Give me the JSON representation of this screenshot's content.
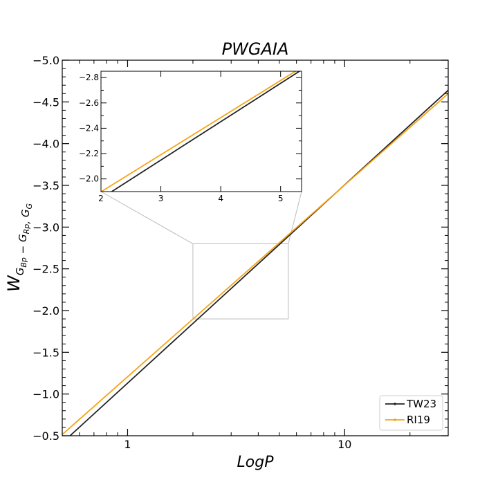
{
  "chart_data": {
    "type": "line",
    "title": "PWGAIA",
    "xlabel": "LogP",
    "ylabel": {
      "base": "W",
      "sub_parts": [
        {
          "text": "G",
          "sub": "Bp"
        },
        {
          "text": " − G",
          "sub": "Rp"
        },
        {
          "text": ", G",
          "sub": "G"
        }
      ]
    },
    "x_scale": "log",
    "xlim": [
      0.5,
      30
    ],
    "ylim": [
      -0.5,
      -5.0
    ],
    "y_inverted": true,
    "x_ticks": [
      {
        "value": 1,
        "label": "1"
      },
      {
        "value": 10,
        "label": "10"
      }
    ],
    "y_ticks": [
      {
        "value": -0.5,
        "label": "−0.5"
      },
      {
        "value": -1.0,
        "label": "−1.0"
      },
      {
        "value": -1.5,
        "label": "−1.5"
      },
      {
        "value": -2.0,
        "label": "−2.0"
      },
      {
        "value": -2.5,
        "label": "−2.5"
      },
      {
        "value": -3.0,
        "label": "−3.0"
      },
      {
        "value": -3.5,
        "label": "−3.5"
      },
      {
        "value": -4.0,
        "label": "−4.0"
      },
      {
        "value": -4.5,
        "label": "−4.5"
      },
      {
        "value": -5.0,
        "label": "−5.0"
      }
    ],
    "series": [
      {
        "name": "TW23",
        "color": "#222222",
        "x": [
          0.5,
          30
        ],
        "y": [
          -0.415,
          -4.64
        ]
      },
      {
        "name": "RI19",
        "color": "#f5a418",
        "x": [
          0.5,
          30
        ],
        "y": [
          -0.515,
          -4.6
        ]
      }
    ],
    "legend_position": "lower-right",
    "inset": {
      "xlim": [
        2,
        5.35
      ],
      "ylim": [
        -1.9,
        -2.85
      ],
      "x_ticks": [
        {
          "value": 2,
          "label": "2"
        },
        {
          "value": 3,
          "label": "3"
        },
        {
          "value": 4,
          "label": "4"
        },
        {
          "value": 5,
          "label": "5"
        }
      ],
      "y_ticks": [
        {
          "value": -2.0,
          "label": "−2.0"
        },
        {
          "value": -2.2,
          "label": "−2.2"
        },
        {
          "value": -2.4,
          "label": "−2.4"
        },
        {
          "value": -2.6,
          "label": "−2.6"
        },
        {
          "value": -2.8,
          "label": "−2.8"
        }
      ],
      "zoom_box": {
        "x": [
          2,
          5.5
        ],
        "y": [
          -1.9,
          -2.8
        ]
      },
      "zoom_color": "#bbbbbb"
    }
  }
}
